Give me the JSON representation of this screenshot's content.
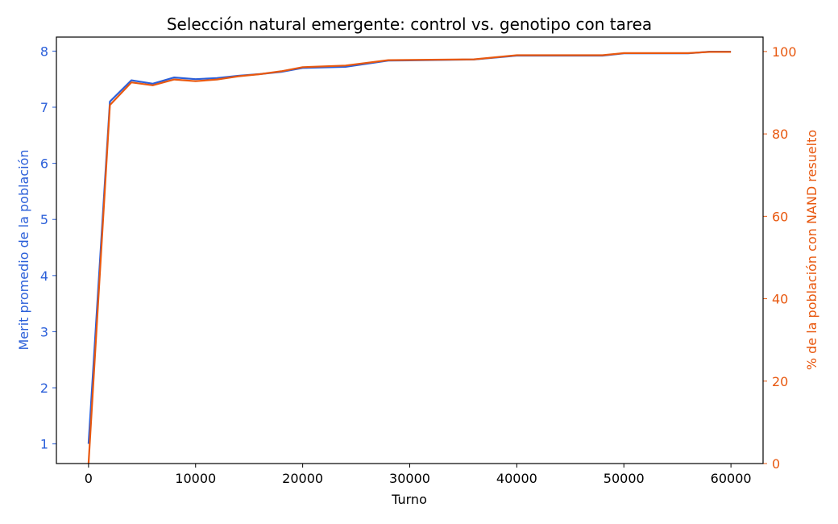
{
  "chart_data": {
    "type": "line",
    "title": "Selección natural emergente: control vs. genotipo con tarea",
    "xlabel": "Turno",
    "ylabel_left": "Merit promedio de la población",
    "ylabel_right": "% de la población con NAND resuelto",
    "xlim": [
      -3000,
      63000
    ],
    "ylim_left": [
      0.65,
      8.25
    ],
    "ylim_right": [
      0,
      103.5
    ],
    "x_ticks": [
      0,
      10000,
      20000,
      30000,
      40000,
      50000,
      60000
    ],
    "x_tick_labels": [
      "0",
      "10000",
      "20000",
      "30000",
      "40000",
      "50000",
      "60000"
    ],
    "y_left_ticks": [
      1,
      2,
      3,
      4,
      5,
      6,
      7,
      8
    ],
    "y_left_tick_labels": [
      "1",
      "2",
      "3",
      "4",
      "5",
      "6",
      "7",
      "8"
    ],
    "y_right_ticks": [
      0,
      20,
      40,
      60,
      80,
      100
    ],
    "y_right_tick_labels": [
      "0",
      "20",
      "40",
      "60",
      "80",
      "100"
    ],
    "grid": false,
    "legend": "none",
    "colors": {
      "left": "#2b5fd9",
      "right": "#e8580f",
      "axis": "#000000"
    },
    "series": [
      {
        "axis": "left",
        "x": [
          0,
          2000,
          4000,
          6000,
          8000,
          10000,
          12000,
          14000,
          16000,
          18000,
          20000,
          24000,
          28000,
          32000,
          36000,
          40000,
          44000,
          48000,
          50000,
          56000,
          58000,
          60000
        ],
        "values": [
          1.0,
          7.1,
          7.48,
          7.42,
          7.53,
          7.5,
          7.52,
          7.56,
          7.59,
          7.63,
          7.7,
          7.72,
          7.83,
          7.84,
          7.85,
          7.92,
          7.92,
          7.92,
          7.96,
          7.96,
          7.99,
          7.99
        ]
      },
      {
        "axis": "right",
        "x": [
          0,
          2000,
          4000,
          6000,
          8000,
          10000,
          12000,
          14000,
          16000,
          18000,
          20000,
          24000,
          28000,
          32000,
          36000,
          40000,
          44000,
          48000,
          50000,
          56000,
          58000,
          60000
        ],
        "values": [
          0,
          87,
          92.5,
          91.8,
          93.2,
          92.8,
          93.2,
          94.0,
          94.5,
          95.2,
          96.2,
          96.6,
          97.9,
          98.0,
          98.1,
          99.1,
          99.1,
          99.1,
          99.6,
          99.6,
          99.9,
          99.9
        ]
      }
    ]
  }
}
